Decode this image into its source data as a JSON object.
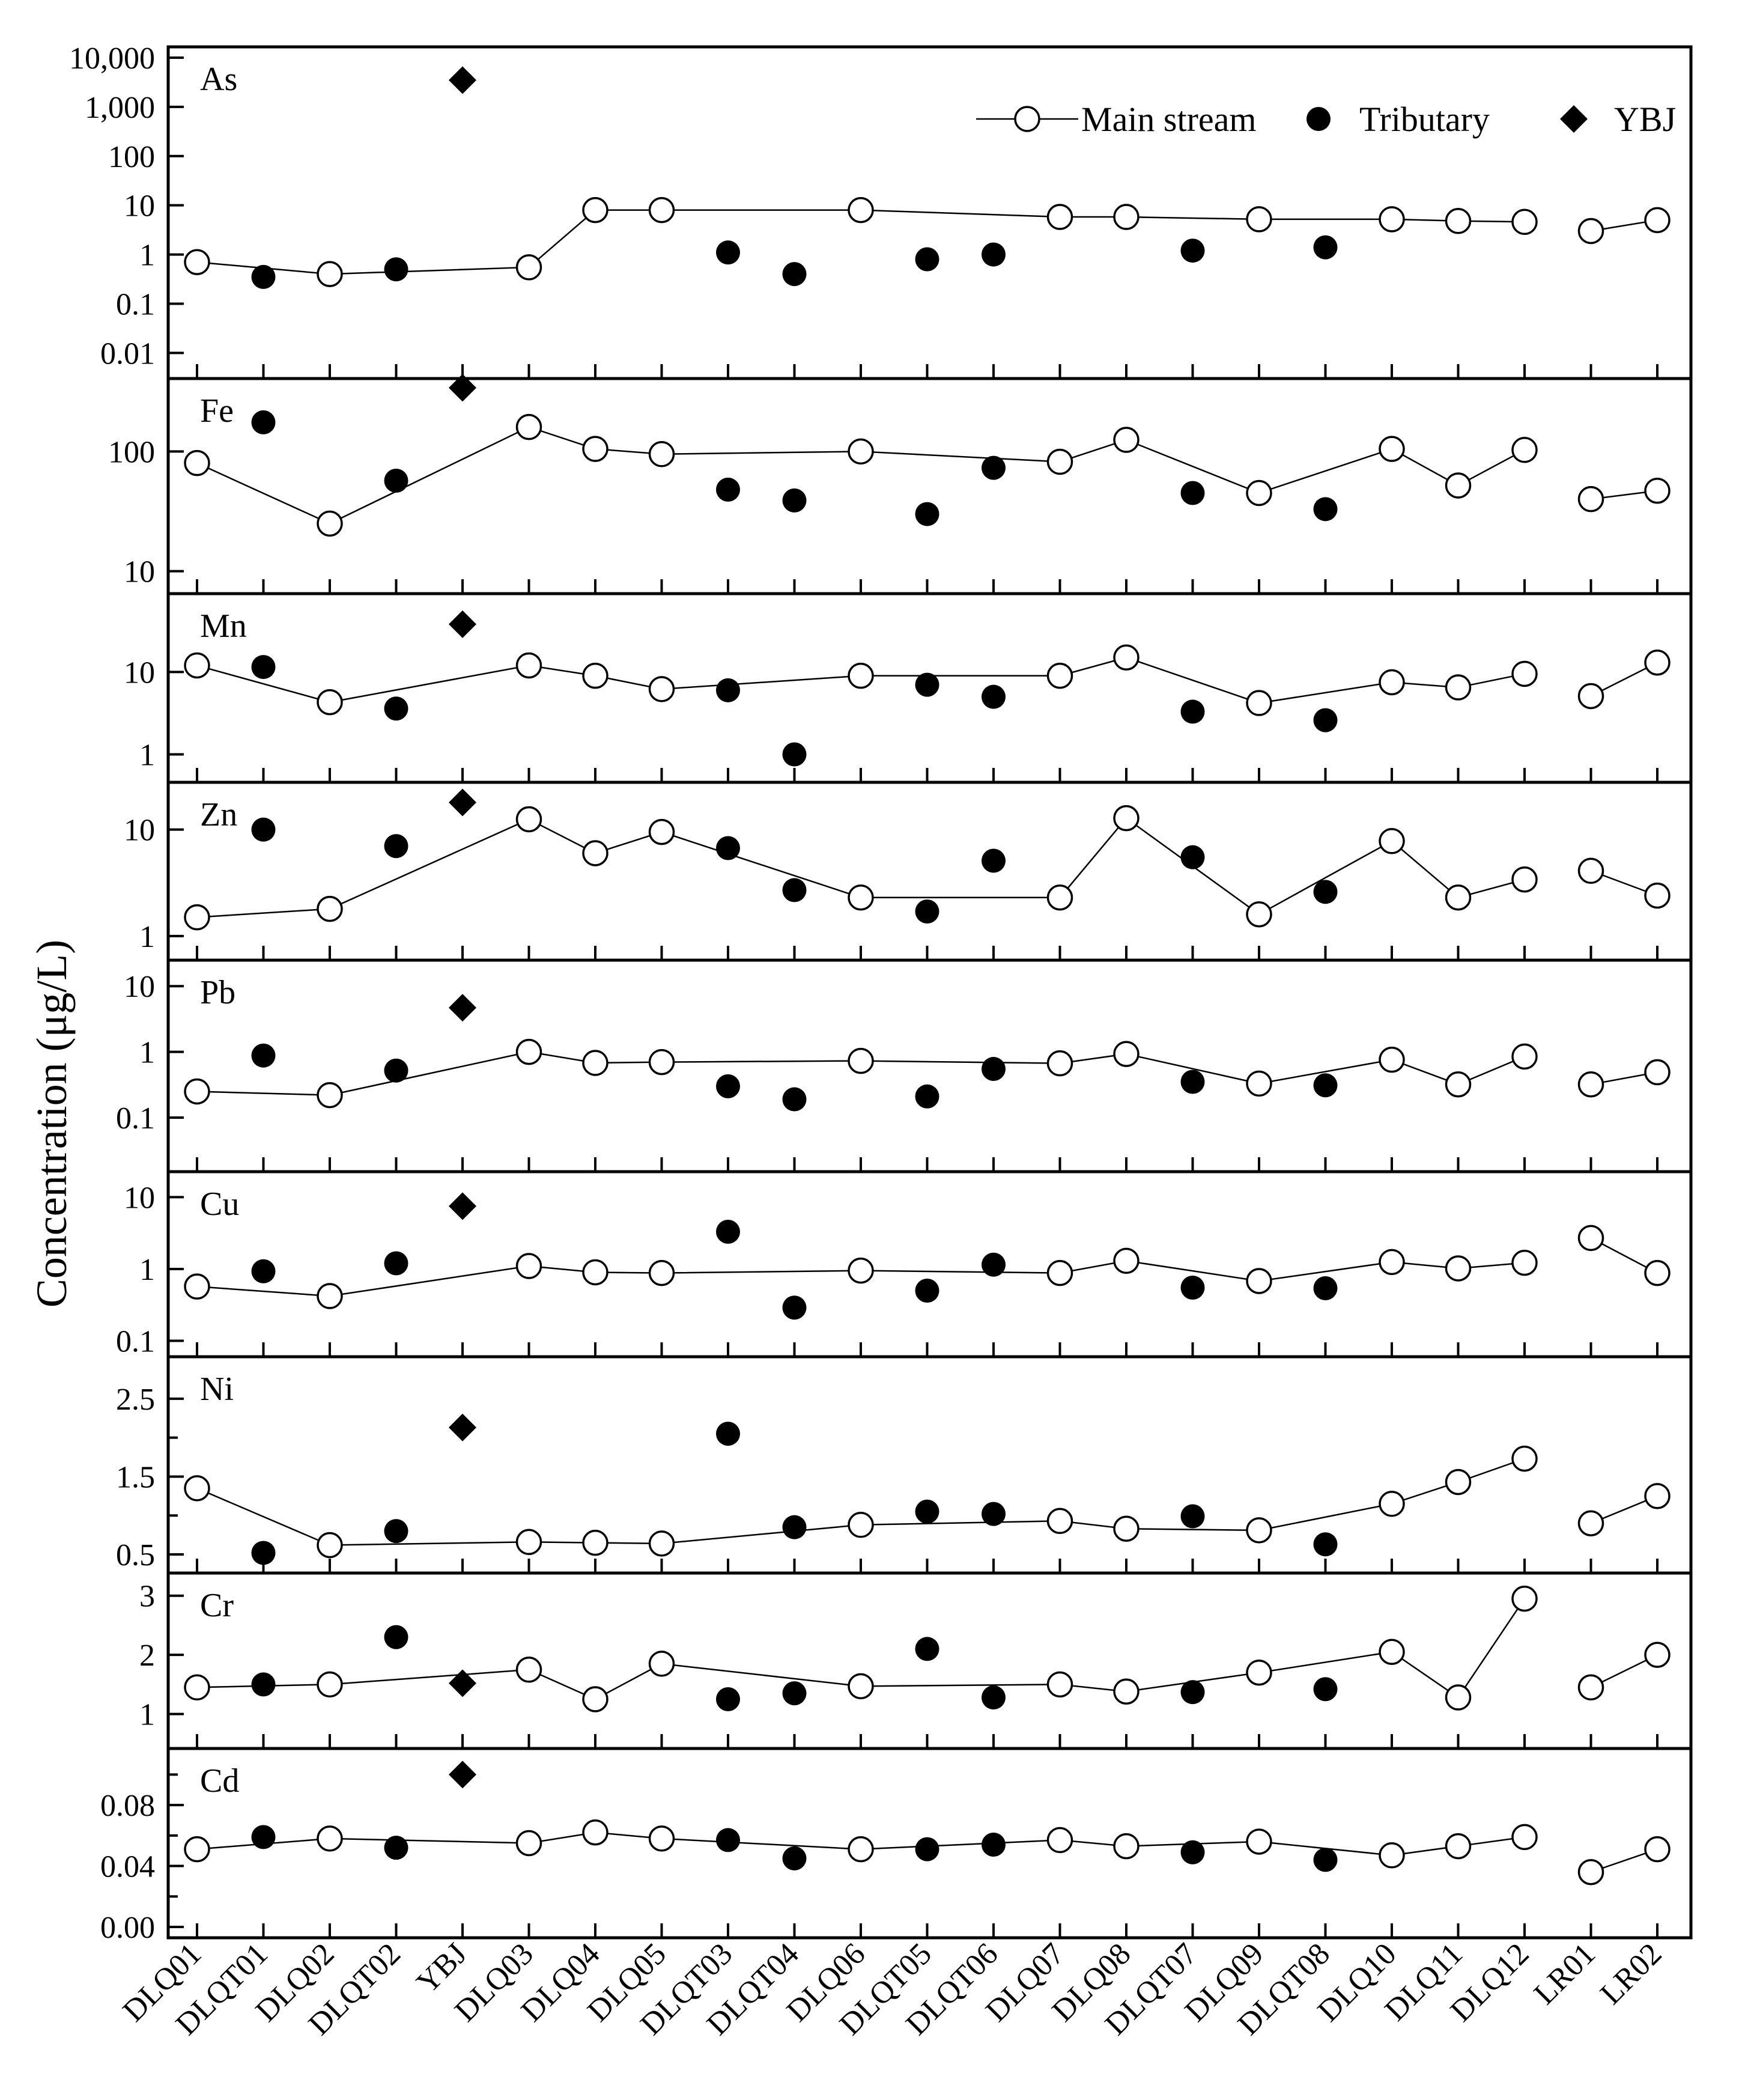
{
  "chart_data": {
    "type": "scatter",
    "title": "",
    "xlabel": "",
    "ylabel": "Concentration (μg/L)",
    "categories": [
      "DLQ01",
      "DLQT01",
      "DLQ02",
      "DLQT02",
      "YBJ",
      "DLQ03",
      "DLQ04",
      "DLQ05",
      "DLQT03",
      "DLQT04",
      "DLQ06",
      "DLQT05",
      "DLQT06",
      "DLQ07",
      "DLQ08",
      "DLQT07",
      "DLQ09",
      "DLQT08",
      "DLQ10",
      "DLQ11",
      "DLQ12",
      "LR01",
      "LR02"
    ],
    "legend": {
      "position": "top-right",
      "entries": [
        {
          "label": "Main stream",
          "marker": "open-circle-line"
        },
        {
          "label": "Tributary",
          "marker": "filled-circle"
        },
        {
          "label": "YBJ",
          "marker": "diamond"
        }
      ]
    },
    "panels": [
      {
        "element": "As",
        "scale": "log",
        "ylim": [
          0.005,
          10000
        ],
        "ticks": [
          0.01,
          0.1,
          1,
          10,
          100,
          1000,
          10000
        ],
        "tick_labels": [
          "0.01",
          "0.1",
          "1",
          "10",
          "100",
          "1,000",
          "10,000"
        ],
        "main_stream": [
          {
            "x": "DLQ01",
            "y": 0.7
          },
          {
            "x": "DLQ02",
            "y": 0.4
          },
          {
            "x": "DLQ03",
            "y": 0.55
          },
          {
            "x": "DLQ04",
            "y": 8
          },
          {
            "x": "DLQ05",
            "y": 8
          },
          {
            "x": "DLQ06",
            "y": 8
          },
          {
            "x": "DLQ07",
            "y": 5.8
          },
          {
            "x": "DLQ08",
            "y": 5.8
          },
          {
            "x": "DLQ09",
            "y": 5.2
          },
          {
            "x": "DLQ10",
            "y": 5.2
          },
          {
            "x": "DLQ11",
            "y": 4.8
          },
          {
            "x": "DLQ12",
            "y": 4.6
          },
          {
            "x": "LR01",
            "y": 3
          },
          {
            "x": "LR02",
            "y": 5
          }
        ],
        "main_breaks_after": [
          "DLQ12"
        ],
        "tributary": [
          {
            "x": "DLQT01",
            "y": 0.35
          },
          {
            "x": "DLQT02",
            "y": 0.5
          },
          {
            "x": "DLQT03",
            "y": 1.1
          },
          {
            "x": "DLQT04",
            "y": 0.4
          },
          {
            "x": "DLQT05",
            "y": 0.8
          },
          {
            "x": "DLQT06",
            "y": 1
          },
          {
            "x": "DLQT07",
            "y": 1.2
          },
          {
            "x": "DLQT08",
            "y": 1.4
          }
        ],
        "ybj": [
          {
            "x": "YBJ",
            "y": 3500
          }
        ]
      },
      {
        "element": "Fe",
        "scale": "log",
        "ylim": [
          8,
          330
        ],
        "ticks": [
          10,
          100
        ],
        "tick_labels": [
          "10",
          "100"
        ],
        "main_stream": [
          {
            "x": "DLQ01",
            "y": 80
          },
          {
            "x": "DLQ02",
            "y": 25
          },
          {
            "x": "DLQ03",
            "y": 160
          },
          {
            "x": "DLQ04",
            "y": 105
          },
          {
            "x": "DLQ05",
            "y": 95
          },
          {
            "x": "DLQ06",
            "y": 100
          },
          {
            "x": "DLQ07",
            "y": 82
          },
          {
            "x": "DLQ08",
            "y": 125
          },
          {
            "x": "DLQ09",
            "y": 45
          },
          {
            "x": "DLQ10",
            "y": 105
          },
          {
            "x": "DLQ11",
            "y": 52
          },
          {
            "x": "DLQ12",
            "y": 103
          },
          {
            "x": "LR01",
            "y": 40
          },
          {
            "x": "LR02",
            "y": 47
          }
        ],
        "main_breaks_after": [
          "DLQ12"
        ],
        "tributary": [
          {
            "x": "DLQT01",
            "y": 175
          },
          {
            "x": "DLQT02",
            "y": 57
          },
          {
            "x": "DLQT03",
            "y": 48
          },
          {
            "x": "DLQT04",
            "y": 39
          },
          {
            "x": "DLQT05",
            "y": 30
          },
          {
            "x": "DLQT06",
            "y": 73
          },
          {
            "x": "DLQT07",
            "y": 45
          },
          {
            "x": "DLQT08",
            "y": 33
          }
        ],
        "ybj": [
          {
            "x": "YBJ",
            "y": 340
          }
        ]
      },
      {
        "element": "Mn",
        "scale": "log",
        "ylim": [
          0.62,
          66
        ],
        "ticks": [
          1,
          10
        ],
        "tick_labels": [
          "1",
          "10"
        ],
        "main_stream": [
          {
            "x": "DLQ01",
            "y": 12
          },
          {
            "x": "DLQ02",
            "y": 4.3
          },
          {
            "x": "DLQ03",
            "y": 12
          },
          {
            "x": "DLQ04",
            "y": 9
          },
          {
            "x": "DLQ05",
            "y": 6.2
          },
          {
            "x": "DLQ06",
            "y": 9
          },
          {
            "x": "DLQ07",
            "y": 9
          },
          {
            "x": "DLQ08",
            "y": 15
          },
          {
            "x": "DLQ09",
            "y": 4.2
          },
          {
            "x": "DLQ10",
            "y": 7.5
          },
          {
            "x": "DLQ11",
            "y": 6.5
          },
          {
            "x": "DLQ12",
            "y": 9.5
          },
          {
            "x": "LR01",
            "y": 5.1
          },
          {
            "x": "LR02",
            "y": 13
          }
        ],
        "main_breaks_after": [
          "DLQ12"
        ],
        "tributary": [
          {
            "x": "DLQT01",
            "y": 11.5
          },
          {
            "x": "DLQT02",
            "y": 3.6
          },
          {
            "x": "DLQT03",
            "y": 6
          },
          {
            "x": "DLQT04",
            "y": 1
          },
          {
            "x": "DLQT05",
            "y": 7
          },
          {
            "x": "DLQT06",
            "y": 5
          },
          {
            "x": "DLQT07",
            "y": 3.3
          },
          {
            "x": "DLQT08",
            "y": 2.6
          }
        ],
        "ybj": [
          {
            "x": "YBJ",
            "y": 38
          }
        ]
      },
      {
        "element": "Zn",
        "scale": "log",
        "ylim": [
          0.75,
          22
        ],
        "ticks": [
          1,
          10
        ],
        "tick_labels": [
          "1",
          "10"
        ],
        "main_stream": [
          {
            "x": "DLQ01",
            "y": 1.5
          },
          {
            "x": "DLQ02",
            "y": 1.8
          },
          {
            "x": "DLQ03",
            "y": 12.5
          },
          {
            "x": "DLQ04",
            "y": 6
          },
          {
            "x": "DLQ05",
            "y": 9.5
          },
          {
            "x": "DLQ06",
            "y": 2.3
          },
          {
            "x": "DLQ07",
            "y": 2.3
          },
          {
            "x": "DLQ08",
            "y": 12.8
          },
          {
            "x": "DLQ09",
            "y": 1.6
          },
          {
            "x": "DLQ10",
            "y": 7.8
          },
          {
            "x": "DLQ11",
            "y": 2.3
          },
          {
            "x": "DLQ12",
            "y": 3.4
          },
          {
            "x": "LR01",
            "y": 4.1
          },
          {
            "x": "LR02",
            "y": 2.4
          }
        ],
        "main_breaks_after": [
          "DLQ12"
        ],
        "tributary": [
          {
            "x": "DLQT01",
            "y": 10
          },
          {
            "x": "DLQT02",
            "y": 7
          },
          {
            "x": "DLQT03",
            "y": 6.7
          },
          {
            "x": "DLQT04",
            "y": 2.7
          },
          {
            "x": "DLQT05",
            "y": 1.7
          },
          {
            "x": "DLQT06",
            "y": 5.1
          },
          {
            "x": "DLQT07",
            "y": 5.5
          },
          {
            "x": "DLQT08",
            "y": 2.6
          }
        ],
        "ybj": [
          {
            "x": "YBJ",
            "y": 18
          }
        ]
      },
      {
        "element": "Pb",
        "scale": "log",
        "ylim": [
          0.022,
          17
        ],
        "ticks": [
          0.1,
          1,
          10
        ],
        "tick_labels": [
          "0.1",
          "1",
          "10"
        ],
        "main_stream": [
          {
            "x": "DLQ01",
            "y": 0.25
          },
          {
            "x": "DLQ02",
            "y": 0.22
          },
          {
            "x": "DLQ03",
            "y": 1
          },
          {
            "x": "DLQ04",
            "y": 0.68
          },
          {
            "x": "DLQ05",
            "y": 0.7
          },
          {
            "x": "DLQ06",
            "y": 0.73
          },
          {
            "x": "DLQ07",
            "y": 0.67
          },
          {
            "x": "DLQ08",
            "y": 0.93
          },
          {
            "x": "DLQ09",
            "y": 0.33
          },
          {
            "x": "DLQ10",
            "y": 0.76
          },
          {
            "x": "DLQ11",
            "y": 0.32
          },
          {
            "x": "DLQ12",
            "y": 0.85
          },
          {
            "x": "LR01",
            "y": 0.32
          },
          {
            "x": "LR02",
            "y": 0.49
          }
        ],
        "main_breaks_after": [
          "DLQ12"
        ],
        "tributary": [
          {
            "x": "DLQT01",
            "y": 0.88
          },
          {
            "x": "DLQT02",
            "y": 0.52
          },
          {
            "x": "DLQT03",
            "y": 0.3
          },
          {
            "x": "DLQT04",
            "y": 0.19
          },
          {
            "x": "DLQT05",
            "y": 0.21
          },
          {
            "x": "DLQT06",
            "y": 0.55
          },
          {
            "x": "DLQT07",
            "y": 0.35
          },
          {
            "x": "DLQT08",
            "y": 0.31
          }
        ],
        "ybj": [
          {
            "x": "YBJ",
            "y": 4.7
          }
        ]
      },
      {
        "element": "Cu",
        "scale": "log",
        "ylim": [
          0.085,
          16
        ],
        "ticks": [
          0.1,
          1,
          10
        ],
        "tick_labels": [
          "0.1",
          "1",
          "10"
        ],
        "main_stream": [
          {
            "x": "DLQ01",
            "y": 0.57
          },
          {
            "x": "DLQ02",
            "y": 0.42
          },
          {
            "x": "DLQ03",
            "y": 1.1
          },
          {
            "x": "DLQ04",
            "y": 0.9
          },
          {
            "x": "DLQ05",
            "y": 0.88
          },
          {
            "x": "DLQ06",
            "y": 0.95
          },
          {
            "x": "DLQ07",
            "y": 0.88
          },
          {
            "x": "DLQ08",
            "y": 1.3
          },
          {
            "x": "DLQ09",
            "y": 0.68
          },
          {
            "x": "DLQ10",
            "y": 1.25
          },
          {
            "x": "DLQ11",
            "y": 1.02
          },
          {
            "x": "DLQ12",
            "y": 1.22
          },
          {
            "x": "LR01",
            "y": 2.7
          },
          {
            "x": "LR02",
            "y": 0.88
          }
        ],
        "main_breaks_after": [
          "DLQ12"
        ],
        "tributary": [
          {
            "x": "DLQT01",
            "y": 0.93
          },
          {
            "x": "DLQT02",
            "y": 1.2
          },
          {
            "x": "DLQT03",
            "y": 3.3
          },
          {
            "x": "DLQT04",
            "y": 0.29
          },
          {
            "x": "DLQT05",
            "y": 0.5
          },
          {
            "x": "DLQT06",
            "y": 1.15
          },
          {
            "x": "DLQT07",
            "y": 0.55
          },
          {
            "x": "DLQT08",
            "y": 0.54
          }
        ],
        "ybj": [
          {
            "x": "YBJ",
            "y": 7.5
          }
        ]
      },
      {
        "element": "Ni",
        "scale": "linear",
        "ylim": [
          0.4,
          2.9
        ],
        "ticks": [
          0.5,
          1.5,
          2.5
        ],
        "minor_ticks": [
          1.0,
          2.0
        ],
        "tick_labels": [
          "0.5",
          "1.5",
          "2.5"
        ],
        "main_stream": [
          {
            "x": "DLQ01",
            "y": 1.35
          },
          {
            "x": "DLQ02",
            "y": 0.62
          },
          {
            "x": "DLQ03",
            "y": 0.66
          },
          {
            "x": "DLQ04",
            "y": 0.65
          },
          {
            "x": "DLQ05",
            "y": 0.64
          },
          {
            "x": "DLQ06",
            "y": 0.88
          },
          {
            "x": "DLQ07",
            "y": 0.93
          },
          {
            "x": "DLQ08",
            "y": 0.83
          },
          {
            "x": "DLQ09",
            "y": 0.81
          },
          {
            "x": "DLQ10",
            "y": 1.15
          },
          {
            "x": "DLQ11",
            "y": 1.43
          },
          {
            "x": "DLQ12",
            "y": 1.73
          },
          {
            "x": "LR01",
            "y": 0.9
          },
          {
            "x": "LR02",
            "y": 1.25
          }
        ],
        "main_breaks_after": [
          "DLQ12"
        ],
        "tributary": [
          {
            "x": "DLQT01",
            "y": 0.52
          },
          {
            "x": "DLQT02",
            "y": 0.8
          },
          {
            "x": "DLQT03",
            "y": 2.05
          },
          {
            "x": "DLQT04",
            "y": 0.85
          },
          {
            "x": "DLQT05",
            "y": 1.05
          },
          {
            "x": "DLQT06",
            "y": 1.02
          },
          {
            "x": "DLQT07",
            "y": 0.99
          },
          {
            "x": "DLQT08",
            "y": 0.63
          }
        ],
        "ybj": [
          {
            "x": "YBJ",
            "y": 2.13
          }
        ]
      },
      {
        "element": "Cr",
        "scale": "linear",
        "ylim": [
          0.6,
          3.2
        ],
        "ticks": [
          1,
          2,
          3
        ],
        "tick_labels": [
          "1",
          "2",
          "3"
        ],
        "main_stream": [
          {
            "x": "DLQ01",
            "y": 1.45
          },
          {
            "x": "DLQ02",
            "y": 1.5
          },
          {
            "x": "DLQ03",
            "y": 1.75
          },
          {
            "x": "DLQ04",
            "y": 1.25
          },
          {
            "x": "DLQ05",
            "y": 1.85
          },
          {
            "x": "DLQ06",
            "y": 1.47
          },
          {
            "x": "DLQ07",
            "y": 1.5
          },
          {
            "x": "DLQ08",
            "y": 1.38
          },
          {
            "x": "DLQ09",
            "y": 1.7
          },
          {
            "x": "DLQ10",
            "y": 2.05
          },
          {
            "x": "DLQ11",
            "y": 1.28
          },
          {
            "x": "DLQ12",
            "y": 2.95
          },
          {
            "x": "LR01",
            "y": 1.45
          },
          {
            "x": "LR02",
            "y": 2
          }
        ],
        "main_breaks_after": [
          "DLQ12"
        ],
        "tributary": [
          {
            "x": "DLQT01",
            "y": 1.5
          },
          {
            "x": "DLQT02",
            "y": 2.3
          },
          {
            "x": "DLQT03",
            "y": 1.25
          },
          {
            "x": "DLQT04",
            "y": 1.35
          },
          {
            "x": "DLQT05",
            "y": 2.1
          },
          {
            "x": "DLQT06",
            "y": 1.28
          },
          {
            "x": "DLQT07",
            "y": 1.37
          },
          {
            "x": "DLQT08",
            "y": 1.42
          }
        ],
        "ybj": [
          {
            "x": "YBJ",
            "y": 1.52
          }
        ]
      },
      {
        "element": "Cd",
        "scale": "linear",
        "ylim": [
          0,
          0.11
        ],
        "ticks": [
          0.0,
          0.04,
          0.08
        ],
        "minor_ticks": [
          0.02,
          0.06,
          0.1
        ],
        "tick_labels": [
          "0.00",
          "0.04",
          "0.08"
        ],
        "main_stream": [
          {
            "x": "DLQ01",
            "y": 0.051
          },
          {
            "x": "DLQ02",
            "y": 0.058
          },
          {
            "x": "DLQ03",
            "y": 0.055
          },
          {
            "x": "DLQ04",
            "y": 0.062
          },
          {
            "x": "DLQ05",
            "y": 0.058
          },
          {
            "x": "DLQ06",
            "y": 0.051
          },
          {
            "x": "DLQ07",
            "y": 0.057
          },
          {
            "x": "DLQ08",
            "y": 0.053
          },
          {
            "x": "DLQ09",
            "y": 0.056
          },
          {
            "x": "DLQ10",
            "y": 0.047
          },
          {
            "x": "DLQ11",
            "y": 0.053
          },
          {
            "x": "DLQ12",
            "y": 0.059
          },
          {
            "x": "LR01",
            "y": 0.036
          },
          {
            "x": "LR02",
            "y": 0.051
          }
        ],
        "main_breaks_after": [
          "DLQ12"
        ],
        "tributary": [
          {
            "x": "DLQT01",
            "y": 0.059
          },
          {
            "x": "DLQT02",
            "y": 0.052
          },
          {
            "x": "DLQT03",
            "y": 0.057
          },
          {
            "x": "DLQT04",
            "y": 0.045
          },
          {
            "x": "DLQT05",
            "y": 0.051
          },
          {
            "x": "DLQT06",
            "y": 0.054
          },
          {
            "x": "DLQT07",
            "y": 0.049
          },
          {
            "x": "DLQT08",
            "y": 0.044
          }
        ],
        "ybj": [
          {
            "x": "YBJ",
            "y": 0.1
          }
        ]
      }
    ]
  }
}
